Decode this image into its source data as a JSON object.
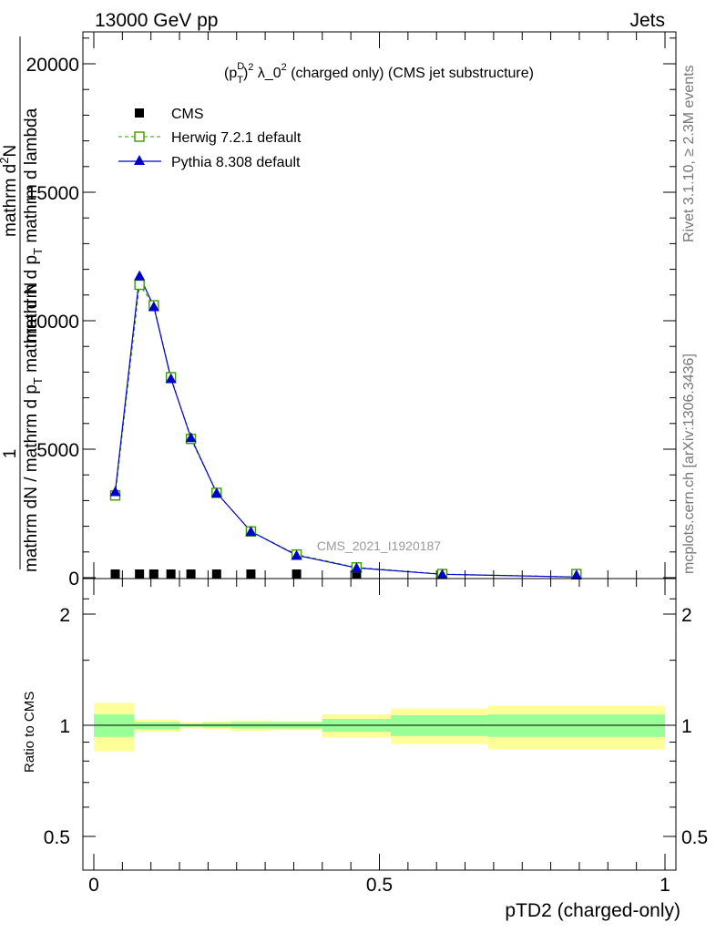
{
  "header": {
    "energy_label": "13000 GeV pp",
    "category_label": "Jets"
  },
  "watermarks": {
    "rivet": "Rivet 3.1.10, ≥ 2.3M events",
    "mcplots": "mcplots.cern.ch [arXiv:1306.3436]",
    "analysis_id": "CMS_2021_I1920187"
  },
  "chart_data": [
    {
      "type": "line",
      "title": "(p_T^D)^2 λ_0^2 (charged only) (CMS jet substructure)",
      "title_parts": {
        "prefix": "(p",
        "sub": "T",
        "sup": "D",
        "close": ")",
        "sup2": "2",
        "lambda": " λ_0",
        "sup3": "2",
        "suffix": " (charged only) (CMS jet substructure)"
      },
      "ylabel_parts": {
        "numerator": "1",
        "denominator": "mathrm dN / mathrm d p",
        "denominator_sub": "T",
        "denominator_tail": " mathrm d N",
        "line2": "mathrm d",
        "line2_sup": "2",
        "line2_tail": "N",
        "line3": "mathrm d p",
        "line3_sub": "T",
        "line3_tail": " mathrm d lambda"
      },
      "xlim": [
        0,
        1
      ],
      "ylim": [
        0,
        21000
      ],
      "y_ticks": [
        0,
        5000,
        10000,
        15000,
        20000
      ],
      "y_tick_labels": [
        "0",
        "5000",
        "10000",
        "15000",
        "20000"
      ],
      "legend_position": "top-left",
      "x": [
        0.0375,
        0.08,
        0.105,
        0.135,
        0.17,
        0.215,
        0.275,
        0.355,
        0.46,
        0.61,
        0.845
      ],
      "series": [
        {
          "name": "CMS",
          "marker": "square-filled",
          "color": "#000000",
          "values": [
            30,
            40,
            40,
            35,
            30,
            25,
            20,
            15,
            10,
            5,
            2
          ]
        },
        {
          "name": "Herwig 7.2.1 default",
          "marker": "square-open",
          "line": "dashed",
          "color": "#3a9a00",
          "values": [
            3200,
            11400,
            10600,
            7800,
            5400,
            3300,
            1800,
            900,
            400,
            140,
            30
          ]
        },
        {
          "name": "Pythia 8.308 default",
          "marker": "triangle-filled",
          "line": "solid",
          "color": "#0000cc",
          "values": [
            3350,
            11750,
            10550,
            7750,
            5450,
            3300,
            1800,
            870,
            380,
            130,
            25
          ]
        }
      ]
    },
    {
      "type": "area",
      "ylabel": "Ratio to CMS",
      "xlabel": "pTD2 (charged-only)",
      "xlim": [
        0,
        1
      ],
      "ylim": [
        0.39,
        2.25
      ],
      "y_ticks": [
        0.5,
        1,
        2
      ],
      "y_tick_labels": [
        "0.5",
        "1",
        "2"
      ],
      "x_ticks": [
        0,
        0.5,
        1
      ],
      "x_tick_labels": [
        "0",
        "0.5",
        "1"
      ],
      "reference_line": 1,
      "bins": [
        {
          "x0": 0.0,
          "x1": 0.07,
          "inner": [
            0.93,
            1.07
          ],
          "outer": [
            0.85,
            1.15
          ]
        },
        {
          "x0": 0.07,
          "x1": 0.15,
          "inner": [
            0.975,
            1.02
          ],
          "outer": [
            0.96,
            1.035
          ]
        },
        {
          "x0": 0.15,
          "x1": 0.19,
          "inner": [
            0.99,
            1.01
          ],
          "outer": [
            0.98,
            1.02
          ]
        },
        {
          "x0": 0.19,
          "x1": 0.24,
          "inner": [
            0.985,
            1.015
          ],
          "outer": [
            0.975,
            1.025
          ]
        },
        {
          "x0": 0.24,
          "x1": 0.31,
          "inner": [
            0.98,
            1.02
          ],
          "outer": [
            0.965,
            1.03
          ]
        },
        {
          "x0": 0.31,
          "x1": 0.4,
          "inner": [
            0.98,
            1.02
          ],
          "outer": [
            0.97,
            1.025
          ]
        },
        {
          "x0": 0.4,
          "x1": 0.52,
          "inner": [
            0.96,
            1.04
          ],
          "outer": [
            0.925,
            1.07
          ]
        },
        {
          "x0": 0.52,
          "x1": 0.69,
          "inner": [
            0.935,
            1.065
          ],
          "outer": [
            0.89,
            1.11
          ]
        },
        {
          "x0": 0.69,
          "x1": 1.0,
          "inner": [
            0.93,
            1.07
          ],
          "outer": [
            0.86,
            1.13
          ]
        }
      ],
      "colors": {
        "inner": "#99ff99",
        "outer": "#ffff99"
      }
    }
  ]
}
